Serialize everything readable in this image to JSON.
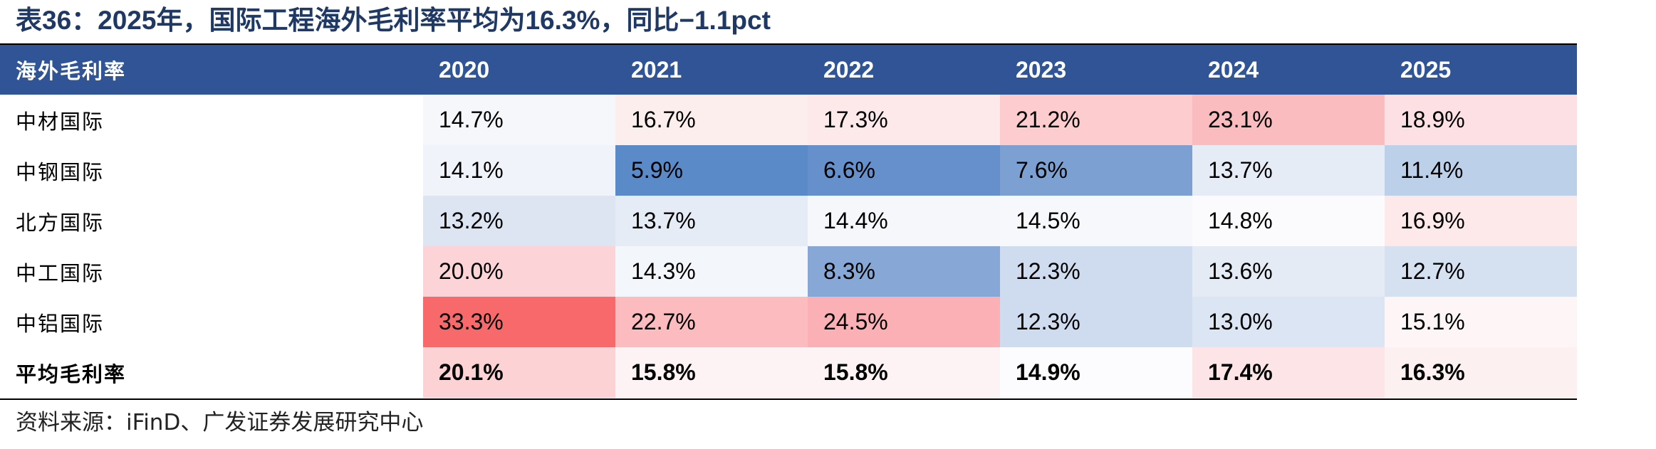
{
  "title": "表36：2025年，国际工程海外毛利率平均为16.3%，同比−1.1pct",
  "source": "资料来源：iFinD、广发证券发展研究中心",
  "chart_data": {
    "type": "table",
    "header": "海外毛利率",
    "columns": [
      "2020",
      "2021",
      "2022",
      "2023",
      "2024",
      "2025"
    ],
    "rows": [
      {
        "name": "中材国际",
        "cells": [
          "14.7%",
          "16.7%",
          "17.3%",
          "21.2%",
          "23.1%",
          "18.9%"
        ],
        "colors": [
          "#f5f7fb",
          "#fdeeee",
          "#fde8ea",
          "#fccccf",
          "#fbbcc0",
          "#fde0e3"
        ]
      },
      {
        "name": "中钢国际",
        "cells": [
          "14.1%",
          "5.9%",
          "6.6%",
          "7.6%",
          "13.7%",
          "11.4%"
        ],
        "colors": [
          "#f0f3fa",
          "#5b8ac8",
          "#6590cb",
          "#7da0d3",
          "#e6ecf6",
          "#bdd0ea"
        ]
      },
      {
        "name": "北方国际",
        "cells": [
          "13.2%",
          "13.7%",
          "14.4%",
          "14.5%",
          "14.8%",
          "16.9%"
        ],
        "colors": [
          "#dde5f3",
          "#e6ecf6",
          "#f5f7fb",
          "#f6f8fb",
          "#fbfbfd",
          "#fde8ea"
        ]
      },
      {
        "name": "中工国际",
        "cells": [
          "20.0%",
          "14.3%",
          "8.3%",
          "12.3%",
          "13.6%",
          "12.7%"
        ],
        "colors": [
          "#fcd3d6",
          "#f3f6fb",
          "#87a8d6",
          "#cfdcef",
          "#e5ebf5",
          "#d5e0f1"
        ]
      },
      {
        "name": "中铝国际",
        "cells": [
          "33.3%",
          "22.7%",
          "24.5%",
          "12.3%",
          "13.0%",
          "15.1%"
        ],
        "colors": [
          "#f8696b",
          "#fbbbbf",
          "#fab0b4",
          "#cfdcef",
          "#dce5f3",
          "#fdf5f6"
        ]
      },
      {
        "name": "平均毛利率",
        "cells": [
          "20.1%",
          "15.8%",
          "15.8%",
          "14.9%",
          "17.4%",
          "16.3%"
        ],
        "colors": [
          "#fcd2d5",
          "#fdf3f4",
          "#fdf3f4",
          "#fcfcfe",
          "#fde4e7",
          "#fdf0f1"
        ],
        "bold": true
      }
    ]
  },
  "colors": {
    "header_bg": "#305496",
    "header_text": "#ffffff",
    "title_color": "#1f3864"
  }
}
